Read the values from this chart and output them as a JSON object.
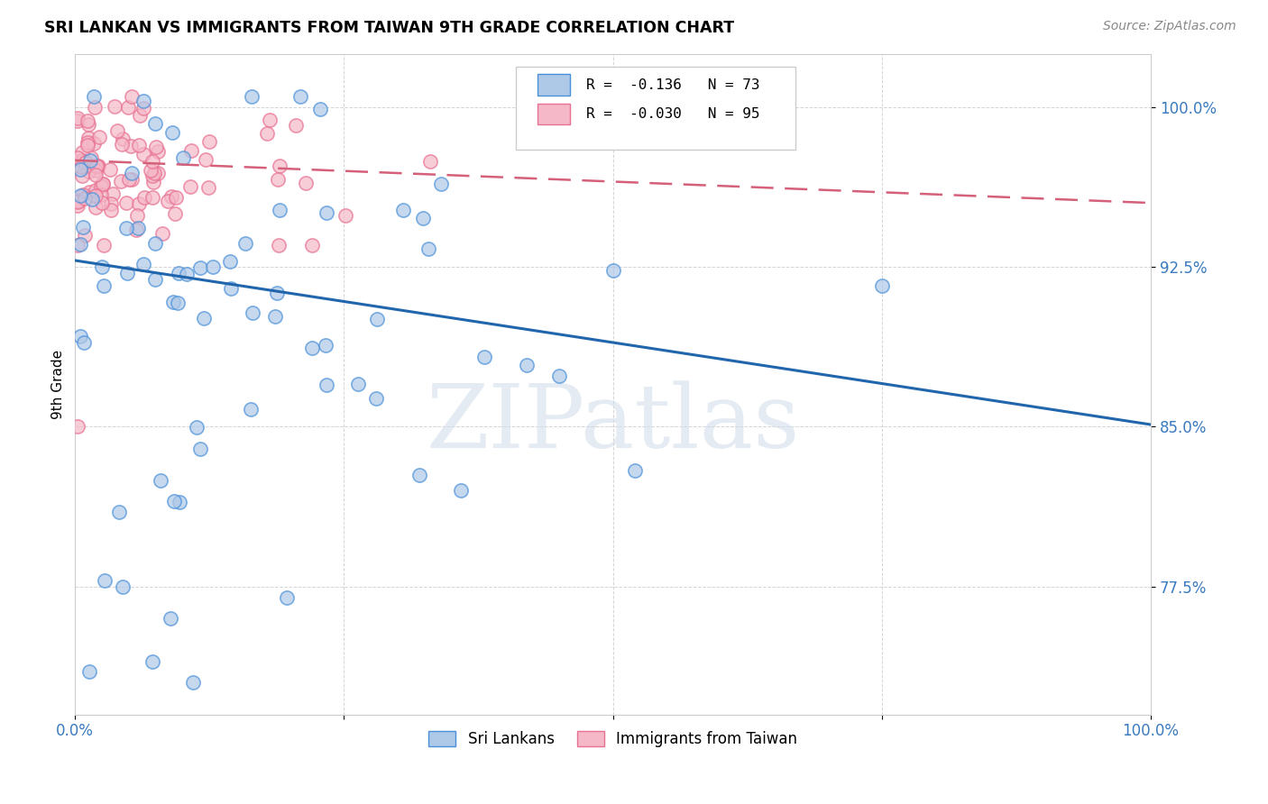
{
  "title": "SRI LANKAN VS IMMIGRANTS FROM TAIWAN 9TH GRADE CORRELATION CHART",
  "source": "Source: ZipAtlas.com",
  "ylabel": "9th Grade",
  "xlim": [
    0.0,
    1.0
  ],
  "ylim": [
    0.715,
    1.025
  ],
  "yticks": [
    0.775,
    0.85,
    0.925,
    1.0
  ],
  "ytick_labels": [
    "77.5%",
    "85.0%",
    "92.5%",
    "100.0%"
  ],
  "xticks": [
    0.0,
    0.25,
    0.5,
    0.75,
    1.0
  ],
  "xtick_labels": [
    "0.0%",
    "",
    "",
    "",
    "100.0%"
  ],
  "blue_R": -0.136,
  "blue_N": 73,
  "pink_R": -0.03,
  "pink_N": 95,
  "blue_color": "#aec8e8",
  "pink_color": "#f4b8c8",
  "blue_edge_color": "#4a90d9",
  "pink_edge_color": "#e87090",
  "blue_line_color": "#2166ac",
  "pink_line_color": "#d4607a",
  "legend_blue_label": "Sri Lankans",
  "legend_pink_label": "Immigrants from Taiwan",
  "watermark": "ZIPatlas",
  "blue_trend_x0": 0.0,
  "blue_trend_x1": 1.0,
  "blue_trend_y0": 0.928,
  "blue_trend_y1": 0.851,
  "pink_trend_x0": 0.0,
  "pink_trend_x1": 1.0,
  "pink_trend_y0": 0.975,
  "pink_trend_y1": 0.955
}
